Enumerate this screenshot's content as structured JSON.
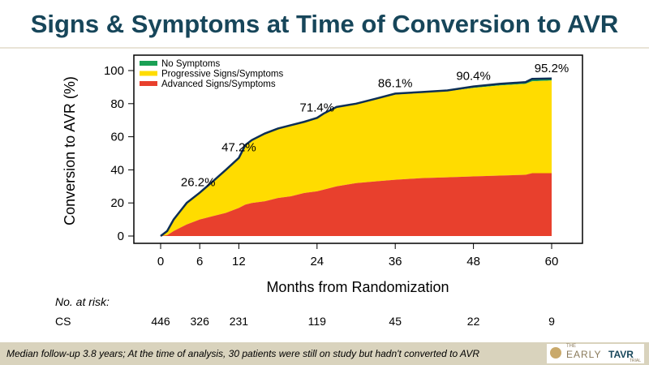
{
  "title": "Signs & Symptoms at Time of Conversion to AVR",
  "chart_data": {
    "type": "area",
    "title": "Signs & Symptoms at Time of Conversion to AVR",
    "xlabel": "Months from Randomization",
    "ylabel": "Conversion to AVR (%)",
    "xlim": [
      0,
      60
    ],
    "ylim": [
      0,
      100
    ],
    "xticks": [
      0,
      6,
      12,
      24,
      36,
      48,
      60
    ],
    "yticks": [
      0,
      20,
      40,
      60,
      80,
      100
    ],
    "legend_position": "top-left",
    "series": [
      {
        "name": "No Symptoms",
        "color": "#1aa055"
      },
      {
        "name": "Progressive Signs/Symptoms",
        "color": "#ffdc00"
      },
      {
        "name": "Advanced Signs/Symptoms",
        "color": "#e8402d"
      }
    ],
    "x": [
      0,
      1,
      2,
      3,
      4,
      6,
      8,
      10,
      12,
      13,
      14,
      16,
      18,
      20,
      22,
      24,
      25,
      27,
      30,
      33,
      36,
      40,
      44,
      48,
      52,
      56,
      57,
      60
    ],
    "total": [
      0,
      3,
      10,
      15,
      20,
      26.2,
      33,
      40,
      47.2,
      55,
      58,
      62,
      65,
      67,
      69,
      71.4,
      74,
      78,
      80,
      83,
      86.1,
      87,
      88,
      90.4,
      92,
      93,
      95,
      95.2
    ],
    "progressive_top": [
      0,
      3,
      10,
      15,
      20,
      26,
      33,
      40,
      47,
      55,
      58,
      62,
      65,
      67,
      69,
      71,
      74,
      78,
      80,
      83,
      85.5,
      86.5,
      87.5,
      89.5,
      91,
      92,
      93.5,
      94
    ],
    "advanced": [
      0,
      0.5,
      3,
      5,
      7,
      10,
      12,
      14,
      17,
      19,
      20,
      21,
      23,
      24,
      26,
      27,
      28,
      30,
      32,
      33,
      34,
      35,
      35.5,
      36,
      36.5,
      37,
      38,
      38
    ],
    "annotations": [
      {
        "x": 6,
        "y": 26.2,
        "text": "26.2%"
      },
      {
        "x": 12,
        "y": 47.2,
        "text": "47.2%"
      },
      {
        "x": 24,
        "y": 71.4,
        "text": "71.4%"
      },
      {
        "x": 36,
        "y": 86.1,
        "text": "86.1%"
      },
      {
        "x": 48,
        "y": 90.4,
        "text": "90.4%"
      },
      {
        "x": 60,
        "y": 95.2,
        "text": "95.2%"
      }
    ],
    "risk_table": {
      "header": "No. at risk:",
      "group": "CS",
      "months": [
        0,
        6,
        12,
        24,
        36,
        48,
        60
      ],
      "values": [
        "446",
        "326",
        "231",
        "119",
        "45",
        "22",
        "9"
      ]
    }
  },
  "footer": "Median follow-up 3.8 years; At the time of analysis, 30 patients were still on study but hadn't converted to AVR",
  "logo": {
    "the": "THE",
    "name1": "EARLY",
    "name2": "TAVR",
    "trial": "TRIAL"
  }
}
